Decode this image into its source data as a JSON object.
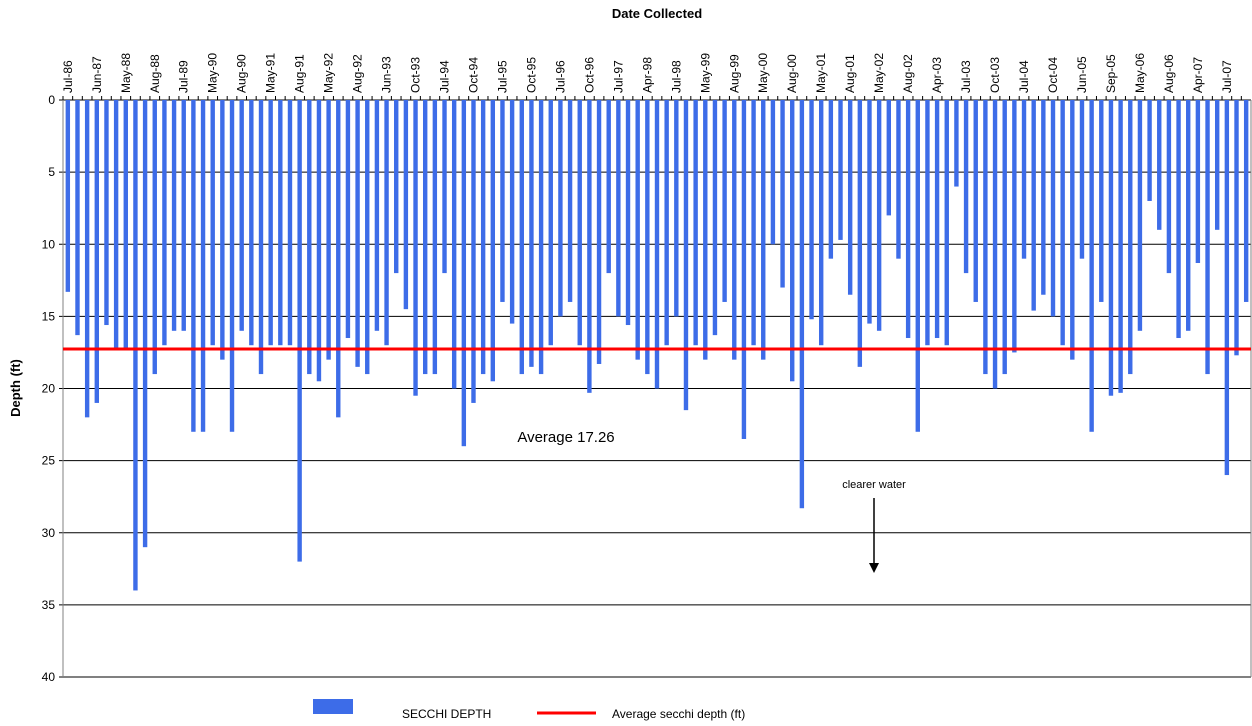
{
  "chart_data": {
    "type": "bar",
    "title": "Date Collected",
    "y_label": "Depth (ft)",
    "categories": [
      "Jul-86",
      null,
      null,
      "Jun-87",
      null,
      null,
      "May-88",
      null,
      null,
      "Aug-88",
      null,
      null,
      "Jul-89",
      null,
      null,
      "May-90",
      null,
      null,
      "Aug-90",
      null,
      null,
      "May-91",
      null,
      null,
      "Aug-91",
      null,
      null,
      "May-92",
      null,
      null,
      "Aug-92",
      null,
      null,
      "Jun-93",
      null,
      null,
      "Oct-93",
      null,
      null,
      "Jul-94",
      null,
      null,
      "Oct-94",
      null,
      null,
      "Jul-95",
      null,
      null,
      "Oct-95",
      null,
      null,
      "Jul-96",
      null,
      null,
      "Oct-96",
      null,
      null,
      "Jul-97",
      null,
      null,
      "Apr-98",
      null,
      null,
      "Jul-98",
      null,
      null,
      "May-99",
      null,
      null,
      "Aug-99",
      null,
      null,
      "May-00",
      null,
      null,
      "Aug-00",
      null,
      null,
      "May-01",
      null,
      null,
      "Aug-01",
      null,
      null,
      "May-02",
      null,
      null,
      "Aug-02",
      null,
      null,
      "Apr-03",
      null,
      null,
      "Jul-03",
      null,
      null,
      "Oct-03",
      null,
      null,
      "Jul-04",
      null,
      null,
      "Oct-04",
      null,
      null,
      "Jun-05",
      null,
      null,
      "Sep-05",
      null,
      null,
      "May-06",
      null,
      null,
      "Aug-06",
      null,
      null,
      "Apr-07",
      null,
      null,
      "Jul-07",
      null,
      null
    ],
    "series": [
      {
        "name": "SECCHI DEPTH",
        "color": "#3d6ce8",
        "values": [
          13.3,
          16.3,
          22,
          21,
          15.6,
          17.2,
          17.2,
          34,
          31,
          19,
          17,
          16,
          16,
          23,
          23,
          17,
          18,
          23,
          16,
          17,
          19,
          17,
          17,
          17,
          32,
          19,
          19.5,
          18,
          22,
          16.5,
          18.5,
          19,
          16,
          17,
          12,
          14.5,
          20.5,
          19,
          19,
          12,
          20,
          24,
          21,
          19,
          19.5,
          14,
          15.5,
          19,
          18.5,
          19,
          17,
          15,
          14,
          17,
          20.3,
          18.3,
          12,
          15,
          15.6,
          18,
          19,
          20,
          17,
          15,
          21.5,
          17,
          18,
          16.3,
          14,
          18,
          23.5,
          17,
          18,
          10,
          13,
          19.5,
          28.3,
          15.2,
          17,
          11,
          9.7,
          13.5,
          18.5,
          15.5,
          16,
          8,
          11,
          16.5,
          23,
          17,
          16.5,
          17,
          6,
          12,
          14,
          19,
          20,
          19,
          17.5,
          11,
          14.6,
          13.5,
          15,
          17,
          18,
          11,
          23,
          14,
          20.5,
          20.3,
          19,
          16,
          7,
          9,
          12,
          16.5,
          16,
          11.3,
          19,
          9,
          26,
          17.7,
          14
        ]
      }
    ],
    "average": {
      "name": "Average secchi depth (ft)",
      "color": "#ff0000",
      "value": 17.26
    },
    "annotations": [
      "Average 17.26",
      "clearer water"
    ],
    "ylim": [
      0,
      40
    ],
    "yticks": [
      0,
      5,
      10,
      15,
      20,
      25,
      30,
      35,
      40
    ],
    "y_inverted": true,
    "grid": true
  }
}
